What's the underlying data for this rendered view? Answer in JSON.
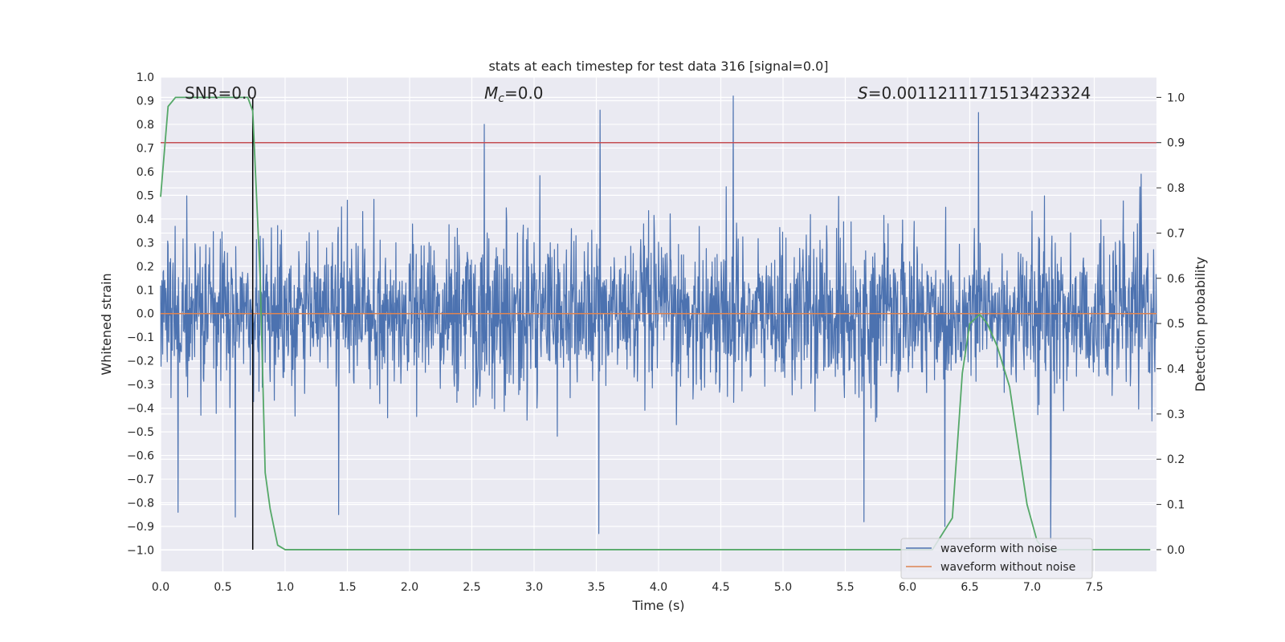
{
  "chart_data": {
    "type": "line",
    "title": "stats at each timestep for test data 316 [signal=0.0]",
    "xlabel": "Time (s)",
    "ylabel_left": "Whitened strain",
    "ylabel_right": "Detection probability",
    "xlim": [
      0.0,
      8.0
    ],
    "ylim_left": [
      -1.09,
      1.0
    ],
    "ylim_right": [
      -0.048,
      1.045
    ],
    "x_ticks": [
      "0.0",
      "0.5",
      "1.0",
      "1.5",
      "2.0",
      "2.5",
      "3.0",
      "3.5",
      "4.0",
      "4.5",
      "5.0",
      "5.5",
      "6.0",
      "6.5",
      "7.0",
      "7.5"
    ],
    "y_left_ticks": [
      "1.0",
      "0.9",
      "0.8",
      "0.7",
      "0.6",
      "0.5",
      "0.4",
      "0.3",
      "0.2",
      "0.1",
      "0.0",
      "−0.1",
      "−0.2",
      "−0.3",
      "−0.4",
      "−0.5",
      "−0.6",
      "−0.7",
      "−0.8",
      "−0.9",
      "−1.0"
    ],
    "y_right_ticks": [
      "1.0",
      "0.9",
      "0.8",
      "0.7",
      "0.6",
      "0.5",
      "0.4",
      "0.3",
      "0.2",
      "0.1",
      "0.0"
    ],
    "annotations": {
      "snr": "SNR=0.0",
      "mc_symbol": "M",
      "mc_sub": "c",
      "mc_value": "=0.0",
      "s_symbol": "S",
      "s_value": "=0.0011211171513423324"
    },
    "threshold": {
      "axis": "right",
      "value": 0.9,
      "color": "#c44e52"
    },
    "marker_time": 0.74,
    "grid": true,
    "legend": {
      "placement": "lower-right",
      "entries": [
        {
          "label": "waveform with noise",
          "color": "#4c72b0"
        },
        {
          "label": "waveform without noise",
          "color": "#dd8452"
        }
      ]
    },
    "series": [
      {
        "name": "waveform with noise",
        "axis": "left",
        "color": "#4c72b0",
        "kind": "noise",
        "envelope_typical": 0.45,
        "peaks": [
          [
            0.14,
            -0.84
          ],
          [
            0.6,
            -0.86
          ],
          [
            1.43,
            -0.85
          ],
          [
            2.6,
            0.8
          ],
          [
            3.52,
            -0.93
          ],
          [
            3.53,
            0.86
          ],
          [
            4.6,
            0.92
          ],
          [
            6.57,
            0.85
          ],
          [
            6.3,
            -0.9
          ],
          [
            7.15,
            -0.96
          ],
          [
            5.65,
            -0.88
          ]
        ]
      },
      {
        "name": "waveform without noise",
        "axis": "left",
        "color": "#dd8452",
        "x": [
          0.0,
          8.0
        ],
        "values": [
          0.0,
          0.0
        ]
      },
      {
        "name": "",
        "axis": "right",
        "color": "#55a868",
        "x": [
          0.0,
          0.06,
          0.12,
          0.6,
          0.7,
          0.74,
          0.8,
          0.84,
          0.88,
          0.94,
          1.0,
          6.2,
          6.36,
          6.44,
          6.5,
          6.58,
          6.64,
          6.72,
          6.82,
          6.9,
          6.96,
          7.04,
          7.1,
          7.2,
          7.95
        ],
        "values": [
          0.78,
          0.98,
          1.0,
          1.0,
          1.0,
          0.97,
          0.6,
          0.17,
          0.09,
          0.01,
          0.0,
          0.0,
          0.07,
          0.39,
          0.5,
          0.52,
          0.5,
          0.45,
          0.36,
          0.21,
          0.1,
          0.02,
          0.0,
          0.0,
          0.0
        ]
      }
    ]
  }
}
